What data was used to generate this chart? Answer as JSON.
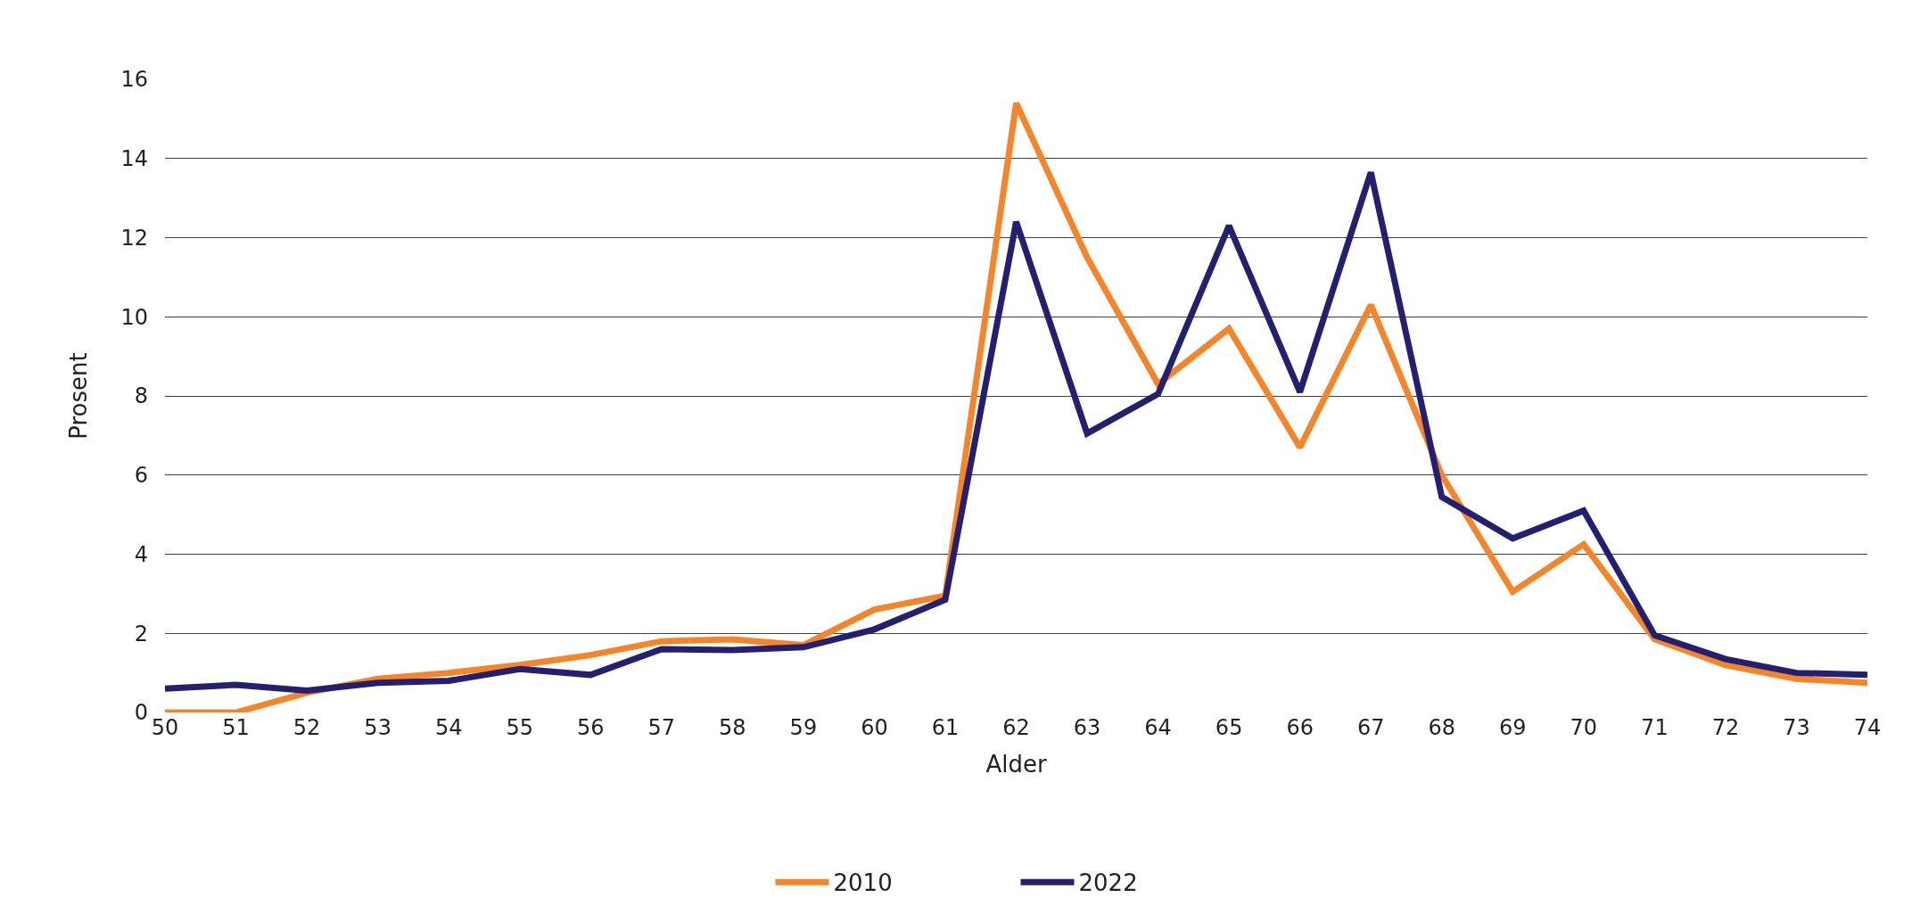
{
  "chart_data": {
    "type": "line",
    "xlabel": "Alder",
    "ylabel": "Prosent",
    "categories": [
      "50",
      "51",
      "52",
      "53",
      "54",
      "55",
      "56",
      "57",
      "58",
      "59",
      "60",
      "61",
      "62",
      "63",
      "64",
      "65",
      "66",
      "67",
      "68",
      "69",
      "70",
      "71",
      "72",
      "73",
      "74"
    ],
    "series": [
      {
        "name": "2010",
        "color": "#f5852a",
        "values": [
          0,
          0,
          0.5,
          0.85,
          1.0,
          1.2,
          1.45,
          1.8,
          1.85,
          1.7,
          2.6,
          2.95,
          15.4,
          11.5,
          8.3,
          9.7,
          6.7,
          10.3,
          6.0,
          3.05,
          4.25,
          1.85,
          1.2,
          0.85,
          0.75
        ]
      },
      {
        "name": "2022",
        "color": "#241f6f",
        "values": [
          0.6,
          0.7,
          0.55,
          0.75,
          0.8,
          1.1,
          0.95,
          1.6,
          1.58,
          1.65,
          2.1,
          2.85,
          12.4,
          7.05,
          8.05,
          12.3,
          8.1,
          13.65,
          5.45,
          4.4,
          5.1,
          1.95,
          1.35,
          1.0,
          0.95
        ]
      }
    ],
    "ylim": [
      0,
      16
    ],
    "yticks": [
      0,
      2,
      4,
      6,
      8,
      10,
      12,
      14,
      16
    ],
    "grid": "y",
    "legend": "bottom",
    "marker": "none",
    "line_style": "solid"
  }
}
